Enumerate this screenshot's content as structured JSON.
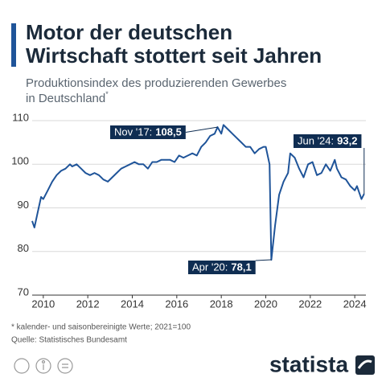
{
  "chart_data": {
    "type": "line",
    "title": [
      "Motor der deutschen",
      "Wirtschaft stottert seit Jahren"
    ],
    "subtitle": [
      "Produktionsindex des produzierenden Gewerbes",
      "in Deutschland"
    ],
    "subtitle_mark": "*",
    "color": "#1f5499",
    "grid": true,
    "xlim": [
      2009.5,
      2024.5
    ],
    "xticks": [
      2010,
      2012,
      2014,
      2016,
      2018,
      2020,
      2022,
      2024
    ],
    "ylim": [
      70,
      110
    ],
    "yticks": [
      70,
      80,
      90,
      100,
      110
    ],
    "x": [
      2009.5,
      2009.6,
      2009.75,
      2009.9,
      2010.0,
      2010.2,
      2010.4,
      2010.6,
      2010.8,
      2011.0,
      2011.2,
      2011.3,
      2011.5,
      2011.7,
      2011.9,
      2012.1,
      2012.3,
      2012.5,
      2012.7,
      2012.9,
      2013.1,
      2013.3,
      2013.5,
      2013.7,
      2013.9,
      2014.1,
      2014.3,
      2014.5,
      2014.7,
      2014.9,
      2015.1,
      2015.3,
      2015.5,
      2015.7,
      2015.9,
      2016.1,
      2016.3,
      2016.5,
      2016.7,
      2016.9,
      2017.1,
      2017.3,
      2017.5,
      2017.7,
      2017.83,
      2018.0,
      2018.1,
      2018.3,
      2018.5,
      2018.7,
      2018.9,
      2019.1,
      2019.3,
      2019.5,
      2019.7,
      2019.9,
      2020.0,
      2020.17,
      2020.25,
      2020.42,
      2020.6,
      2020.8,
      2021.0,
      2021.1,
      2021.3,
      2021.5,
      2021.7,
      2021.9,
      2022.1,
      2022.3,
      2022.5,
      2022.7,
      2022.9,
      2023.1,
      2023.2,
      2023.4,
      2023.6,
      2023.8,
      2024.0,
      2024.1,
      2024.3,
      2024.42
    ],
    "values": [
      87,
      85.5,
      89,
      92.5,
      92,
      94,
      96,
      97.5,
      98.5,
      99,
      100,
      99.5,
      100,
      99,
      98,
      97.5,
      98,
      97.5,
      96.5,
      96,
      97,
      98,
      99,
      99.5,
      100,
      100.5,
      100,
      100,
      99,
      100.5,
      100.5,
      101,
      101,
      101,
      100.5,
      102,
      101.5,
      102,
      102.5,
      102,
      104,
      105,
      106.5,
      107,
      108.5,
      107,
      109,
      108,
      107,
      106,
      105,
      104,
      104,
      102.5,
      103.5,
      104,
      104,
      100,
      78.1,
      86,
      93,
      96,
      98,
      102.5,
      101.5,
      99,
      97,
      100,
      100.5,
      97.5,
      98,
      100,
      98.5,
      101,
      99,
      97,
      96.5,
      95,
      94,
      95,
      92,
      93.2
    ],
    "annotations": [
      {
        "label": "Nov '17:",
        "x": 2017.83,
        "value": 108.5,
        "value_label": "108,5"
      },
      {
        "label": "Apr '20:",
        "x": 2020.25,
        "value": 78.1,
        "value_label": "78,1"
      },
      {
        "label": "Jun '24:",
        "x": 2024.42,
        "value": 93.2,
        "value_label": "93,2"
      }
    ],
    "footnote": "* kalender- und saisonbereinigte Werte; 2021=100",
    "source": "Quelle: Statistisches Bundesamt",
    "brand": "statista"
  }
}
